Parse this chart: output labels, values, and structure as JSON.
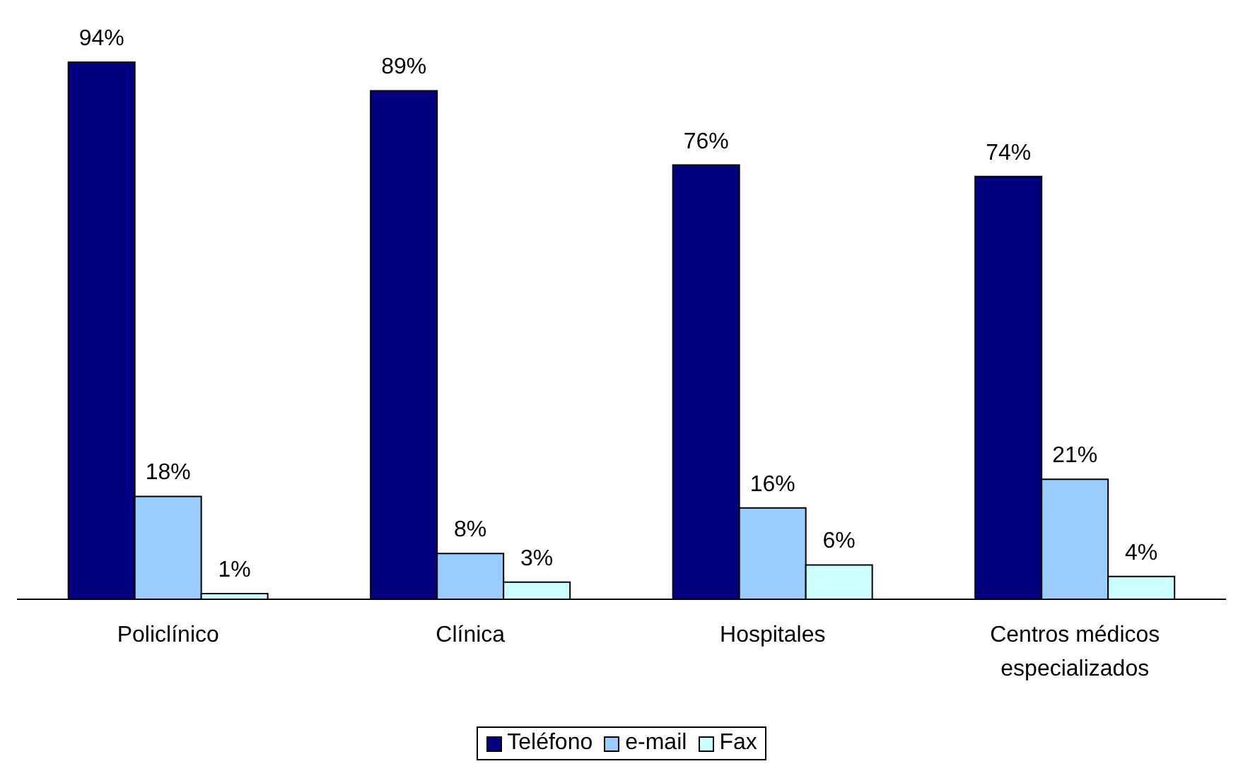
{
  "chart_data": {
    "type": "bar",
    "categories": [
      "Policlínico",
      "Clínica",
      "Hospitales",
      "Centros médicos especializados"
    ],
    "series": [
      {
        "name": "Teléfono",
        "color": "#000080",
        "values": [
          94,
          89,
          76,
          74
        ],
        "value_labels": [
          "94%",
          "89%",
          "76%",
          "74%"
        ]
      },
      {
        "name": "e-mail",
        "color": "#99ccff",
        "values": [
          18,
          8,
          16,
          21
        ],
        "value_labels": [
          "18%",
          "8%",
          "16%",
          "21%"
        ]
      },
      {
        "name": "Fax",
        "color": "#ccffff",
        "values": [
          1,
          3,
          6,
          4
        ],
        "value_labels": [
          "1%",
          "3%",
          "6%",
          "4%"
        ]
      }
    ],
    "legend": "bottom",
    "grid": false
  }
}
